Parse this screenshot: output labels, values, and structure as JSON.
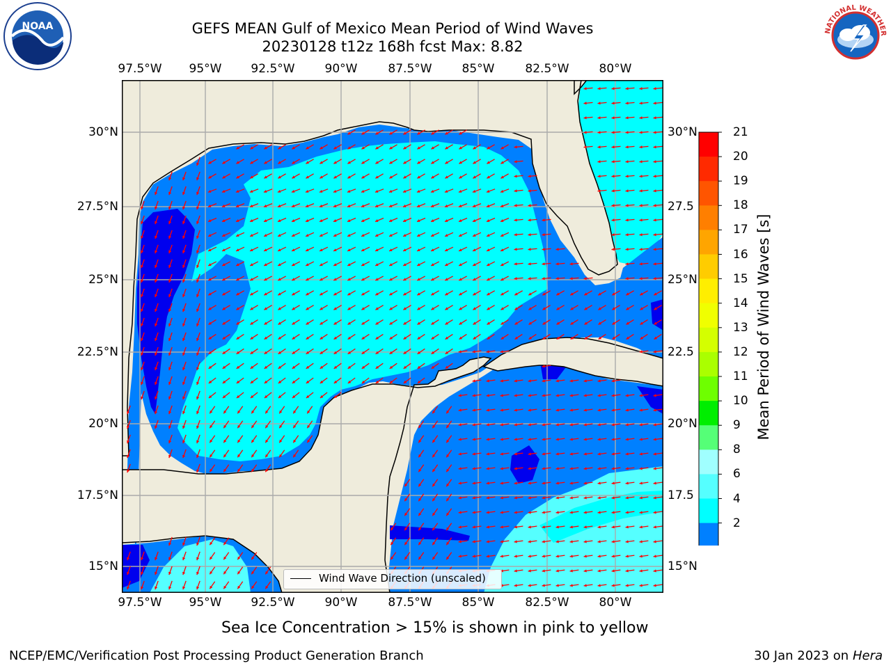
{
  "title": {
    "line1": "GEFS MEAN Gulf of Mexico Mean Period of Wind Waves",
    "line2": "20230128 t12z 168h fcst   Max: 8.82"
  },
  "axes": {
    "lon_labels": [
      "97.5°W",
      "95°W",
      "92.5°W",
      "90°W",
      "87.5°W",
      "85°W",
      "82.5°W",
      "80°W"
    ],
    "lat_labels_left": [
      "30°N",
      "27.5°N",
      "25°N",
      "22.5°N",
      "20°N",
      "17.5°N",
      "15°N"
    ],
    "lat_labels_right": [
      "30°N",
      "27.5",
      "25°N",
      "22.5",
      "20°N",
      "17.5",
      "15°N"
    ]
  },
  "colorbar": {
    "label": "Mean Period of Wind Waves [s]",
    "ticks": [
      "21",
      "20",
      "19",
      "18",
      "17",
      "16",
      "15",
      "14",
      "13",
      "12",
      "11",
      "10",
      "9",
      "8",
      "6",
      "4",
      "2"
    ],
    "colors": [
      "#ff0000",
      "#ff2a00",
      "#ff5500",
      "#ff7f00",
      "#ffa500",
      "#ffcc00",
      "#ffee00",
      "#f0ff00",
      "#d4ff00",
      "#aaff00",
      "#6eff00",
      "#00ee00",
      "#55ff77",
      "#a0ffff",
      "#55ffff",
      "#00ffff",
      "#0080ff"
    ],
    "under_color": "#0000ee"
  },
  "legend": {
    "label": "Wind Wave Direction (unscaled)"
  },
  "note": "Sea Ice Concentration > 15% is shown in pink to yellow",
  "footer": {
    "left": "NCEP/EMC/Verification Post Processing Product Generation Branch",
    "right_date": "30 Jan 2023 on ",
    "right_host": "Hera"
  },
  "logos": {
    "left": {
      "text": "NOAA",
      "ring_text": "NATIONAL OCEANIC AND ATMOSPHERIC ADMINISTRATION · U.S. DEPARTMENT OF COMMERCE"
    },
    "right": {
      "text": "NATIONAL WEATHER SERVICE"
    }
  },
  "map_colors": {
    "land": "#efecdc",
    "ocean_dark": "#0000ee",
    "ocean_mid": "#0080ff",
    "ocean_light": "#00ffff",
    "ocean_pale": "#55ffff",
    "arrow": "#ff0000",
    "grid": "#aaaaaa"
  }
}
